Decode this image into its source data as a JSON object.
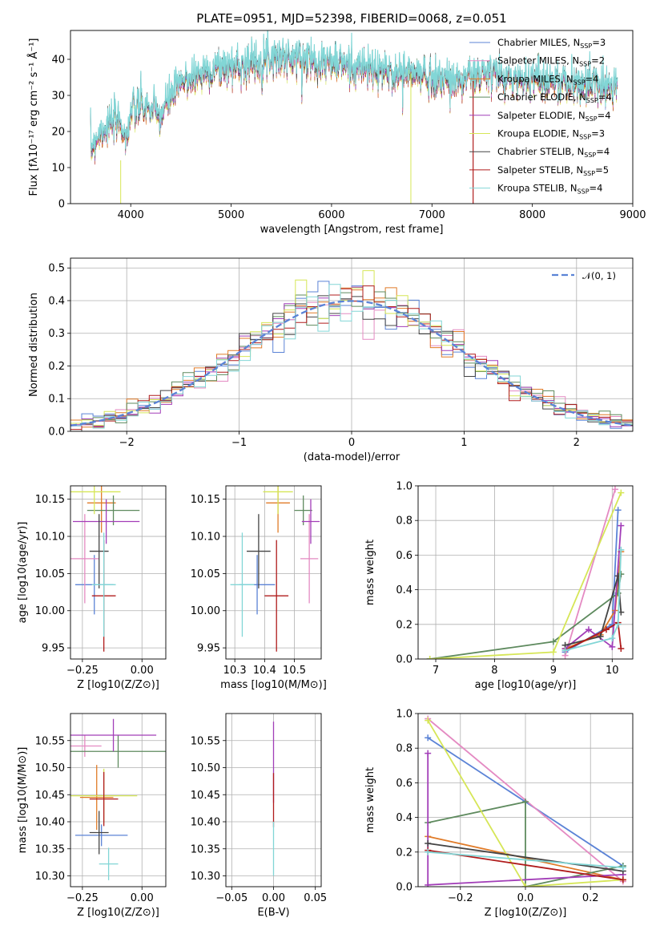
{
  "figure": {
    "title": "PLATE=0951, MJD=52398, FIBERID=0068, z=0.051"
  },
  "colors": {
    "Chabrier MILES": "#5b83d6",
    "Salpeter MILES": "#e48ac2",
    "Kroupa MILES": "#e07b28",
    "Chabrier ELODIE": "#5e8a5e",
    "Salpeter ELODIE": "#a23eb8",
    "Kroupa ELODIE": "#d6e657",
    "Chabrier STELIB": "#444444",
    "Salpeter STELIB": "#b01c1c",
    "Kroupa STELIB": "#82d6d6",
    "normal": "#5b83d6"
  },
  "chart_data": [
    {
      "id": "spectrum",
      "type": "line",
      "title": "PLATE=0951, MJD=52398, FIBERID=0068, z=0.051",
      "xlabel": "wavelength [Angstrom, rest frame]",
      "ylabel": "Flux [fλ10⁻¹⁷ erg cm⁻² s⁻¹ Å⁻¹]",
      "xlim": [
        3400,
        9000
      ],
      "ylim": [
        0,
        48
      ],
      "xticks": [
        4000,
        5000,
        6000,
        7000,
        8000,
        9000
      ],
      "yticks": [
        0,
        10,
        20,
        30,
        40
      ],
      "legend_position": "upper-right",
      "series": [
        {
          "name": "Chabrier MILES, N_SSP=3"
        },
        {
          "name": "Salpeter MILES, N_SSP=2"
        },
        {
          "name": "Kroupa MILES, N_SSP=4"
        },
        {
          "name": "Chabrier ELODIE, N_SSP=4"
        },
        {
          "name": "Salpeter ELODIE, N_SSP=4"
        },
        {
          "name": "Kroupa ELODIE, N_SSP=3"
        },
        {
          "name": "Chabrier STELIB, N_SSP=4"
        },
        {
          "name": "Salpeter STELIB, N_SSP=5"
        },
        {
          "name": "Kroupa STELIB, N_SSP=4"
        }
      ],
      "continuum": {
        "x": [
          3600,
          3650,
          3700,
          3800,
          3900,
          3950,
          4000,
          4100,
          4200,
          4300,
          4400,
          4500,
          4600,
          4800,
          5000,
          5200,
          5400,
          5600,
          5800,
          6000,
          6200,
          6400,
          6600,
          6800,
          7000,
          7200,
          7400,
          7600,
          7800,
          8000,
          8200,
          8400,
          8600,
          8800
        ],
        "y": [
          15,
          18,
          20,
          22,
          23,
          17,
          25,
          27,
          26,
          24,
          30,
          33,
          35,
          37,
          38,
          39,
          41,
          40,
          40,
          39,
          38,
          37,
          36,
          36,
          35,
          34,
          35,
          36,
          34,
          35,
          34,
          33,
          33,
          33
        ]
      }
    },
    {
      "id": "residuals",
      "type": "bar",
      "xlabel": "(data-model)/error",
      "ylabel": "Normed distribution",
      "xlim": [
        -2.5,
        2.5
      ],
      "ylim": [
        0,
        0.53
      ],
      "xticks": [
        -2,
        -1,
        0,
        1,
        2
      ],
      "yticks": [
        0.0,
        0.1,
        0.2,
        0.3,
        0.4,
        0.5
      ],
      "grid": true,
      "legend_position": "upper-right",
      "reference": {
        "name": "N(0,1)",
        "mean": 0,
        "sigma": 1
      },
      "bins": {
        "start": -2.5,
        "width": 0.1,
        "count": 50
      }
    },
    {
      "id": "age-vs-Z",
      "type": "scatter",
      "xlabel": "Z [log10(Z/Z⊙)]",
      "ylabel": "age  [log10(age/yr)]",
      "xlim": [
        -0.3,
        0.1
      ],
      "ylim": [
        9.935,
        10.168
      ],
      "xticks": [
        -0.25,
        0.0
      ],
      "yticks": [
        9.95,
        10.0,
        10.05,
        10.1,
        10.15
      ],
      "grid": true,
      "points": [
        {
          "model": "Chabrier MILES",
          "x": -0.2,
          "y": 10.035,
          "xerr": 0.08,
          "yerr": 0.04
        },
        {
          "model": "Salpeter MILES",
          "x": -0.24,
          "y": 10.07,
          "xerr": 0.06,
          "yerr": 0.06
        },
        {
          "model": "Kroupa MILES",
          "x": -0.17,
          "y": 10.145,
          "xerr": 0.06,
          "yerr": 0.04
        },
        {
          "model": "Chabrier ELODIE",
          "x": -0.12,
          "y": 10.135,
          "xerr": 0.11,
          "yerr": 0.02
        },
        {
          "model": "Salpeter ELODIE",
          "x": -0.15,
          "y": 10.12,
          "xerr": 0.14,
          "yerr": 0.03
        },
        {
          "model": "Kroupa ELODIE",
          "x": -0.2,
          "y": 10.16,
          "xerr": 0.11,
          "yerr": 0.03
        },
        {
          "model": "Chabrier STELIB",
          "x": -0.18,
          "y": 10.08,
          "xerr": 0.04,
          "yerr": 0.05
        },
        {
          "model": "Salpeter STELIB",
          "x": -0.16,
          "y": 10.02,
          "xerr": 0.05,
          "yerr": 0.075
        },
        {
          "model": "Kroupa STELIB",
          "x": -0.16,
          "y": 10.035,
          "xerr": 0.05,
          "yerr": 0.07
        }
      ]
    },
    {
      "id": "age-vs-mass",
      "type": "scatter",
      "xlabel": "mass [log10(M/M⊙)]",
      "ylabel": "",
      "xlim": [
        10.27,
        10.59
      ],
      "ylim": [
        9.935,
        10.168
      ],
      "xticks": [
        10.3,
        10.4,
        10.5
      ],
      "yticks": [
        9.95,
        10.0,
        10.05,
        10.1,
        10.15
      ],
      "grid": true,
      "points": [
        {
          "model": "Chabrier MILES",
          "x": 10.375,
          "y": 10.035,
          "xerr": 0.06,
          "yerr": 0.04
        },
        {
          "model": "Salpeter MILES",
          "x": 10.55,
          "y": 10.07,
          "xerr": 0.03,
          "yerr": 0.06
        },
        {
          "model": "Kroupa MILES",
          "x": 10.445,
          "y": 10.145,
          "xerr": 0.04,
          "yerr": 0.04
        },
        {
          "model": "Chabrier ELODIE",
          "x": 10.53,
          "y": 10.135,
          "xerr": 0.03,
          "yerr": 0.02
        },
        {
          "model": "Salpeter ELODIE",
          "x": 10.555,
          "y": 10.12,
          "xerr": 0.03,
          "yerr": 0.03
        },
        {
          "model": "Kroupa ELODIE",
          "x": 10.445,
          "y": 10.16,
          "xerr": 0.05,
          "yerr": 0.03
        },
        {
          "model": "Chabrier STELIB",
          "x": 10.38,
          "y": 10.08,
          "xerr": 0.04,
          "yerr": 0.05
        },
        {
          "model": "Salpeter STELIB",
          "x": 10.44,
          "y": 10.02,
          "xerr": 0.04,
          "yerr": 0.075
        },
        {
          "model": "Kroupa STELIB",
          "x": 10.325,
          "y": 10.035,
          "xerr": 0.04,
          "yerr": 0.07
        }
      ]
    },
    {
      "id": "massweight-vs-age",
      "type": "line",
      "xlabel": "age  [log10(age/yr)]",
      "ylabel": "mass weight",
      "xlim": [
        6.7,
        10.35
      ],
      "ylim": [
        0,
        1.0
      ],
      "xticks": [
        7,
        8,
        9,
        10
      ],
      "yticks": [
        0.0,
        0.2,
        0.4,
        0.6,
        0.8,
        1.0
      ],
      "grid": true,
      "series": [
        {
          "model": "Chabrier MILES",
          "x": [
            9.2,
            10.0,
            10.1
          ],
          "y": [
            0.04,
            0.2,
            0.86
          ]
        },
        {
          "model": "Salpeter MILES",
          "x": [
            9.2,
            10.05
          ],
          "y": [
            0.02,
            0.98
          ]
        },
        {
          "model": "Kroupa MILES",
          "x": [
            9.2,
            9.8,
            10.05,
            10.15
          ],
          "y": [
            0.06,
            0.14,
            0.28,
            0.62
          ]
        },
        {
          "model": "Chabrier ELODIE",
          "x": [
            6.9,
            9.0,
            10.1,
            10.15
          ],
          "y": [
            0.0,
            0.1,
            0.38,
            0.49
          ]
        },
        {
          "model": "Salpeter ELODIE",
          "x": [
            9.2,
            9.6,
            10.0,
            10.15
          ],
          "y": [
            0.06,
            0.17,
            0.07,
            0.77
          ]
        },
        {
          "model": "Kroupa ELODIE",
          "x": [
            6.9,
            9.0,
            10.15
          ],
          "y": [
            0.0,
            0.04,
            0.96
          ]
        },
        {
          "model": "Chabrier STELIB",
          "x": [
            9.2,
            9.8,
            10.1,
            10.15
          ],
          "y": [
            0.08,
            0.13,
            0.48,
            0.27
          ]
        },
        {
          "model": "Salpeter STELIB",
          "x": [
            9.2,
            9.9,
            10.1,
            10.15
          ],
          "y": [
            0.05,
            0.17,
            0.21,
            0.06
          ]
        },
        {
          "model": "Kroupa STELIB",
          "x": [
            9.2,
            10.0,
            10.1,
            10.15
          ],
          "y": [
            0.05,
            0.12,
            0.2,
            0.63
          ]
        }
      ]
    },
    {
      "id": "mass-vs-Z",
      "type": "scatter",
      "xlabel": "Z [log10(Z/Z⊙)]",
      "ylabel": "mass [log10(M/M⊙)]",
      "xlim": [
        -0.3,
        0.1
      ],
      "ylim": [
        10.28,
        10.6
      ],
      "xticks": [
        -0.25,
        0.0
      ],
      "yticks": [
        10.3,
        10.35,
        10.4,
        10.45,
        10.5,
        10.55
      ],
      "grid": true,
      "points": [
        {
          "model": "Chabrier MILES",
          "x": -0.17,
          "y": 10.375,
          "xerr": 0.11,
          "yerr": 0.02
        },
        {
          "model": "Salpeter MILES",
          "x": -0.24,
          "y": 10.54,
          "xerr": 0.07,
          "yerr": 0.02
        },
        {
          "model": "Kroupa MILES",
          "x": -0.19,
          "y": 10.445,
          "xerr": 0.07,
          "yerr": 0.06
        },
        {
          "model": "Chabrier ELODIE",
          "x": -0.1,
          "y": 10.53,
          "xerr": 0.2,
          "yerr": 0.03
        },
        {
          "model": "Salpeter ELODIE",
          "x": -0.12,
          "y": 10.56,
          "xerr": 0.18,
          "yerr": 0.03
        },
        {
          "model": "Kroupa ELODIE",
          "x": -0.16,
          "y": 10.448,
          "xerr": 0.14,
          "yerr": 0.05
        },
        {
          "model": "Chabrier STELIB",
          "x": -0.18,
          "y": 10.38,
          "xerr": 0.04,
          "yerr": 0.04
        },
        {
          "model": "Salpeter STELIB",
          "x": -0.16,
          "y": 10.442,
          "xerr": 0.06,
          "yerr": 0.05
        },
        {
          "model": "Kroupa STELIB",
          "x": -0.14,
          "y": 10.322,
          "xerr": 0.04,
          "yerr": 0.03
        }
      ]
    },
    {
      "id": "mass-vs-EBV",
      "type": "scatter",
      "xlabel": "E(B-V)",
      "ylabel": "",
      "xlim": [
        -0.057,
        0.057
      ],
      "ylim": [
        10.28,
        10.6
      ],
      "xticks": [
        -0.05,
        0.0,
        0.05
      ],
      "yticks": [
        10.3,
        10.35,
        10.4,
        10.45,
        10.5,
        10.55
      ],
      "grid": true,
      "points": [
        {
          "model": "Salpeter ELODIE",
          "x": 0.0,
          "y": 10.51,
          "xerr": 0.0,
          "yerr": 0.075
        },
        {
          "model": "Salpeter STELIB",
          "x": 0.0,
          "y": 10.44,
          "xerr": 0.0,
          "yerr": 0.05
        },
        {
          "model": "Kroupa STELIB",
          "x": 0.0,
          "y": 10.35,
          "xerr": 0.0,
          "yerr": 0.05
        }
      ]
    },
    {
      "id": "massweight-vs-Z",
      "type": "line",
      "xlabel": "Z [log10(Z/Z⊙)]",
      "ylabel": "mass weight",
      "xlim": [
        -0.33,
        0.33
      ],
      "ylim": [
        0,
        1.0
      ],
      "xticks": [
        -0.2,
        0.0,
        0.2
      ],
      "yticks": [
        0.0,
        0.2,
        0.4,
        0.6,
        0.8,
        1.0
      ],
      "grid": true,
      "series": [
        {
          "model": "Chabrier MILES",
          "x": [
            -0.3,
            0.3
          ],
          "y": [
            0.86,
            0.12
          ]
        },
        {
          "model": "Salpeter MILES",
          "x": [
            -0.3,
            0.3
          ],
          "y": [
            0.97,
            0.03
          ]
        },
        {
          "model": "Kroupa MILES",
          "x": [
            -0.3,
            0.3
          ],
          "y": [
            0.29,
            0.04
          ]
        },
        {
          "model": "Chabrier ELODIE",
          "x": [
            -0.3,
            0.0,
            0.0,
            0.3
          ],
          "y": [
            0.37,
            0.49,
            0.0,
            0.12
          ]
        },
        {
          "model": "Salpeter ELODIE",
          "x": [
            -0.3,
            -0.3,
            0.3
          ],
          "y": [
            0.77,
            0.01,
            0.07
          ]
        },
        {
          "model": "Kroupa ELODIE",
          "x": [
            -0.3,
            0.0,
            0.3
          ],
          "y": [
            0.96,
            0.0,
            0.04
          ]
        },
        {
          "model": "Chabrier STELIB",
          "x": [
            -0.3,
            0.3
          ],
          "y": [
            0.25,
            0.09
          ]
        },
        {
          "model": "Salpeter STELIB",
          "x": [
            -0.3,
            0.3
          ],
          "y": [
            0.21,
            0.04
          ]
        },
        {
          "model": "Kroupa STELIB",
          "x": [
            -0.3,
            0.3
          ],
          "y": [
            0.2,
            0.11
          ]
        }
      ]
    }
  ]
}
